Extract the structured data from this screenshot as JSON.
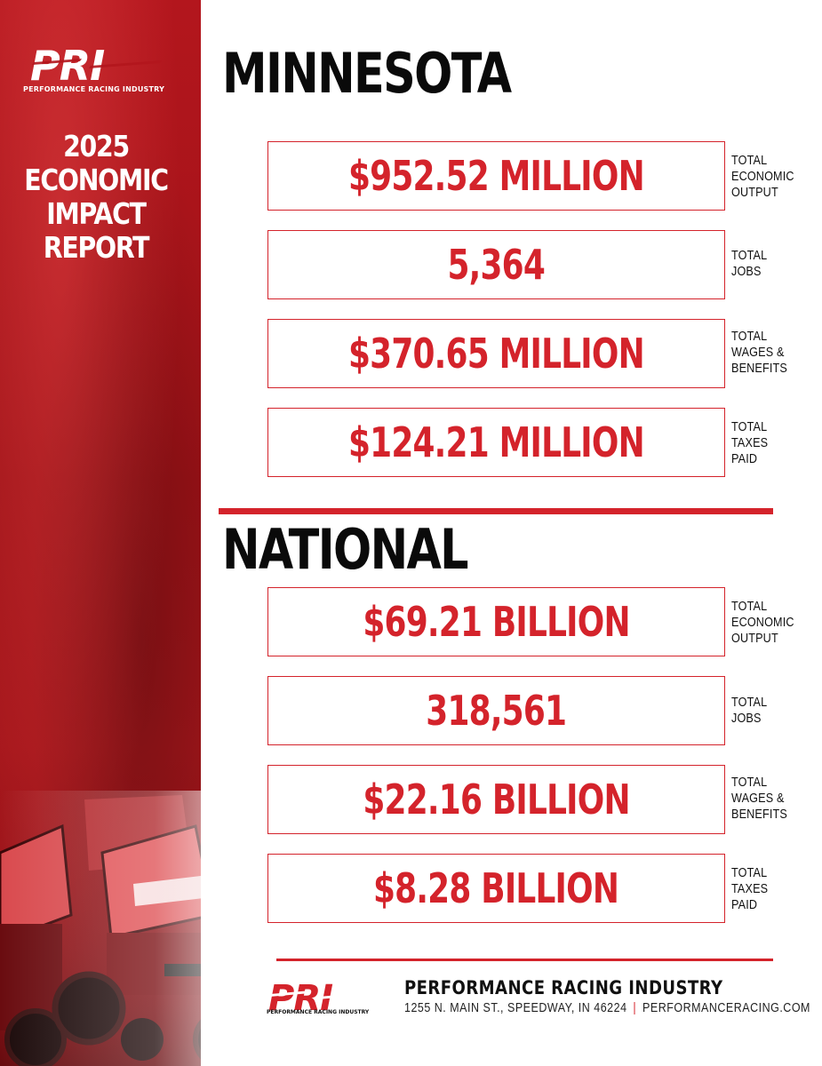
{
  "brand": {
    "logo_text": "PRI",
    "tagline": "PERFORMANCE RACING INDUSTRY",
    "accent_color": "#d4232b",
    "sidebar_color": "#a5161b"
  },
  "report_title": {
    "line1": "2025",
    "line2": "ECONOMIC",
    "line3": "IMPACT",
    "line4": "REPORT"
  },
  "state_section": {
    "heading": "MINNESOTA",
    "stats": [
      {
        "value": "$952.52 MILLION",
        "label": [
          "TOTAL",
          "ECONOMIC",
          "OUTPUT"
        ]
      },
      {
        "value": "5,364",
        "label": [
          "TOTAL",
          "JOBS"
        ]
      },
      {
        "value": "$370.65 MILLION",
        "label": [
          "TOTAL",
          "WAGES &",
          "BENEFITS"
        ]
      },
      {
        "value": "$124.21 MILLION",
        "label": [
          "TOTAL",
          "TAXES",
          "PAID"
        ]
      }
    ]
  },
  "national_section": {
    "heading": "NATIONAL",
    "stats": [
      {
        "value": "$69.21 BILLION",
        "label": [
          "TOTAL",
          "ECONOMIC",
          "OUTPUT"
        ]
      },
      {
        "value": "318,561",
        "label": [
          "TOTAL",
          "JOBS"
        ]
      },
      {
        "value": "$22.16 BILLION",
        "label": [
          "TOTAL",
          "WAGES &",
          "BENEFITS"
        ]
      },
      {
        "value": "$8.28 BILLION",
        "label": [
          "TOTAL",
          "TAXES",
          "PAID"
        ]
      }
    ]
  },
  "footer": {
    "logo_text": "PRI",
    "logo_tagline": "PERFORMANCE RACING INDUSTRY",
    "org_name": "PERFORMANCE RACING INDUSTRY",
    "address": "1255 N. MAIN ST., SPEEDWAY, IN 46224",
    "separator": "|",
    "website": "PERFORMANCERACING.COM"
  }
}
